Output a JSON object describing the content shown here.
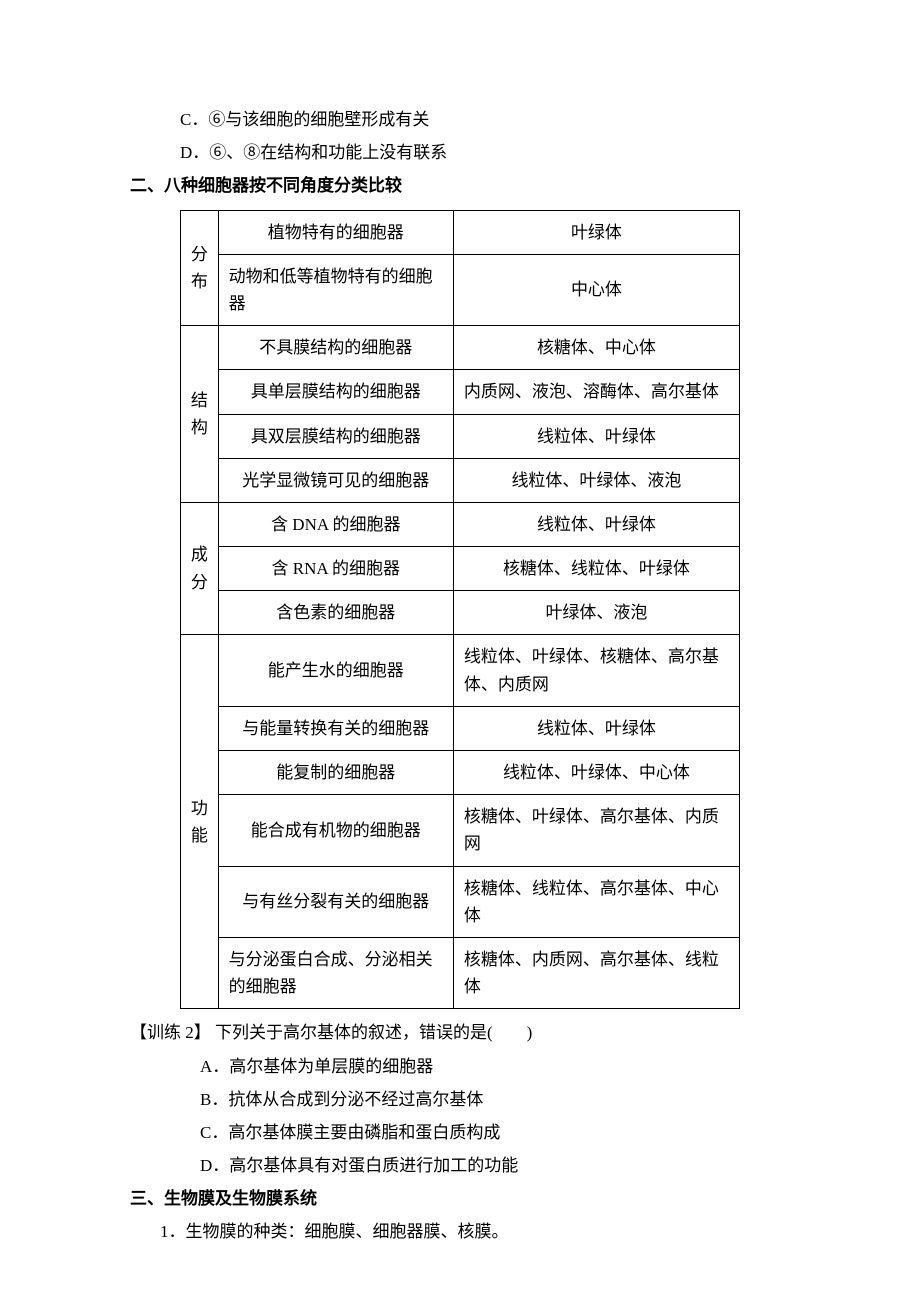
{
  "topLines": {
    "c": "C．⑥与该细胞的细胞壁形成有关",
    "d": "D．⑥、⑧在结构和功能上没有联系"
  },
  "heading2": "二、八种细胞器按不同角度分类比较",
  "table": {
    "columns_width": [
      24,
      210,
      260
    ],
    "border_color": "#000000",
    "font_size": 17,
    "groups": [
      {
        "cat": "分布",
        "rows": [
          {
            "mid": "植物特有的细胞器",
            "mid_align": "center",
            "right": "叶绿体",
            "right_align": "center"
          },
          {
            "mid": "动物和低等植物特有的细胞器",
            "mid_align": "left",
            "right": "中心体",
            "right_align": "center"
          }
        ]
      },
      {
        "cat": "结构",
        "rows": [
          {
            "mid": "不具膜结构的细胞器",
            "mid_align": "center",
            "right": "核糖体、中心体",
            "right_align": "center"
          },
          {
            "mid": "具单层膜结构的细胞器",
            "mid_align": "center",
            "right": "内质网、液泡、溶酶体、高尔基体",
            "right_align": "left"
          },
          {
            "mid": "具双层膜结构的细胞器",
            "mid_align": "center",
            "right": "线粒体、叶绿体",
            "right_align": "center"
          },
          {
            "mid": "光学显微镜可见的细胞器",
            "mid_align": "center",
            "right": "线粒体、叶绿体、液泡",
            "right_align": "center"
          }
        ]
      },
      {
        "cat": "成分",
        "rows": [
          {
            "mid": "含 DNA 的细胞器",
            "mid_align": "center",
            "right": "线粒体、叶绿体",
            "right_align": "center"
          },
          {
            "mid": "含 RNA 的细胞器",
            "mid_align": "center",
            "right": "核糖体、线粒体、叶绿体",
            "right_align": "center"
          },
          {
            "mid": "含色素的细胞器",
            "mid_align": "center",
            "right": "叶绿体、液泡",
            "right_align": "center"
          }
        ]
      },
      {
        "cat": "功能",
        "rows": [
          {
            "mid": "能产生水的细胞器",
            "mid_align": "center",
            "right": "线粒体、叶绿体、核糖体、高尔基体、内质网",
            "right_align": "left"
          },
          {
            "mid": "与能量转换有关的细胞器",
            "mid_align": "center",
            "right": "线粒体、叶绿体",
            "right_align": "center"
          },
          {
            "mid": "能复制的细胞器",
            "mid_align": "center",
            "right": "线粒体、叶绿体、中心体",
            "right_align": "center"
          },
          {
            "mid": "能合成有机物的细胞器",
            "mid_align": "center",
            "right": "核糖体、叶绿体、高尔基体、内质网",
            "right_align": "left"
          },
          {
            "mid": "与有丝分裂有关的细胞器",
            "mid_align": "center",
            "right": "核糖体、线粒体、高尔基体、中心体",
            "right_align": "left"
          },
          {
            "mid": "与分泌蛋白合成、分泌相关的细胞器",
            "mid_align": "left",
            "right": "核糖体、内质网、高尔基体、线粒体",
            "right_align": "left"
          }
        ]
      }
    ]
  },
  "exercise2": {
    "stem": "【训练 2】 下列关于高尔基体的叙述，错误的是(　　)",
    "options": {
      "a": "A．高尔基体为单层膜的细胞器",
      "b": "B．抗体从合成到分泌不经过高尔基体",
      "c": "C．高尔基体膜主要由磷脂和蛋白质构成",
      "d": "D．高尔基体具有对蛋白质进行加工的功能"
    }
  },
  "heading3": "三、生物膜及生物膜系统",
  "point1": "1．生物膜的种类：细胞膜、细胞器膜、核膜。"
}
